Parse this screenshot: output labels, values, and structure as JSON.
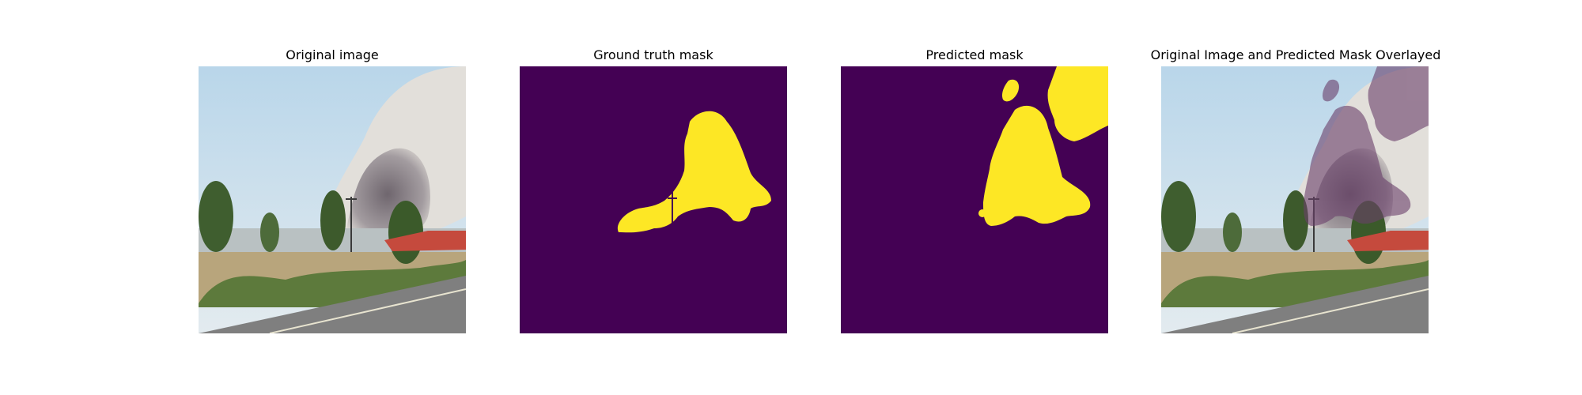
{
  "figure": {
    "panels": [
      {
        "title": "Original image"
      },
      {
        "title": "Ground truth mask"
      },
      {
        "title": "Predicted mask"
      },
      {
        "title": "Original Image and Predicted Mask Overlayed"
      }
    ]
  },
  "colors": {
    "mask_background": "#440154",
    "mask_foreground": "#fde725",
    "sky": "#cfe0ea",
    "smoke_light": "#dcd9d3",
    "smoke_dark": "#7b7278",
    "vegetation": "#4f6b35",
    "dry_grass": "#b8a57c",
    "road": "#7f7f7f",
    "roof": "#c54a3d",
    "overlay": "#6a3f6a"
  }
}
